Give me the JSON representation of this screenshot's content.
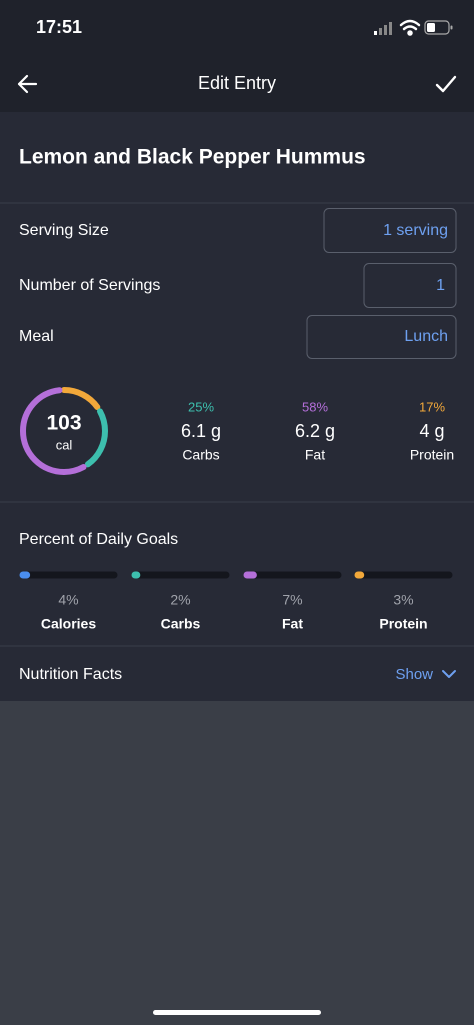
{
  "status_bar": {
    "time": "17:51"
  },
  "header": {
    "title": "Edit Entry"
  },
  "food": {
    "name": "Lemon and Black Pepper Hummus"
  },
  "fields": [
    {
      "label": "Serving Size",
      "value": "1 serving"
    },
    {
      "label": "Number of Servings",
      "value": "1"
    },
    {
      "label": "Meal",
      "value": "Lunch"
    }
  ],
  "calories": {
    "value": 103,
    "unit": "cal"
  },
  "macros": [
    {
      "name": "Carbs",
      "amount": "6.1 g",
      "percent": 25,
      "percent_label": "25%",
      "color": "#3dbfae"
    },
    {
      "name": "Fat",
      "amount": "6.2 g",
      "percent": 58,
      "percent_label": "58%",
      "color": "#b46fd9"
    },
    {
      "name": "Protein",
      "amount": "4 g",
      "percent": 17,
      "percent_label": "17%",
      "color": "#f2a83a"
    }
  ],
  "daily_goals": {
    "title": "Percent of Daily Goals",
    "items": [
      {
        "name": "Calories",
        "percent": 4,
        "percent_label": "4%",
        "color": "#4a8ef0"
      },
      {
        "name": "Carbs",
        "percent": 2,
        "percent_label": "2%",
        "color": "#3dbfae"
      },
      {
        "name": "Fat",
        "percent": 7,
        "percent_label": "7%",
        "color": "#b46fd9"
      },
      {
        "name": "Protein",
        "percent": 3,
        "percent_label": "3%",
        "color": "#f2a83a"
      }
    ]
  },
  "nutrition_facts": {
    "title": "Nutrition Facts",
    "toggle": "Show"
  }
}
